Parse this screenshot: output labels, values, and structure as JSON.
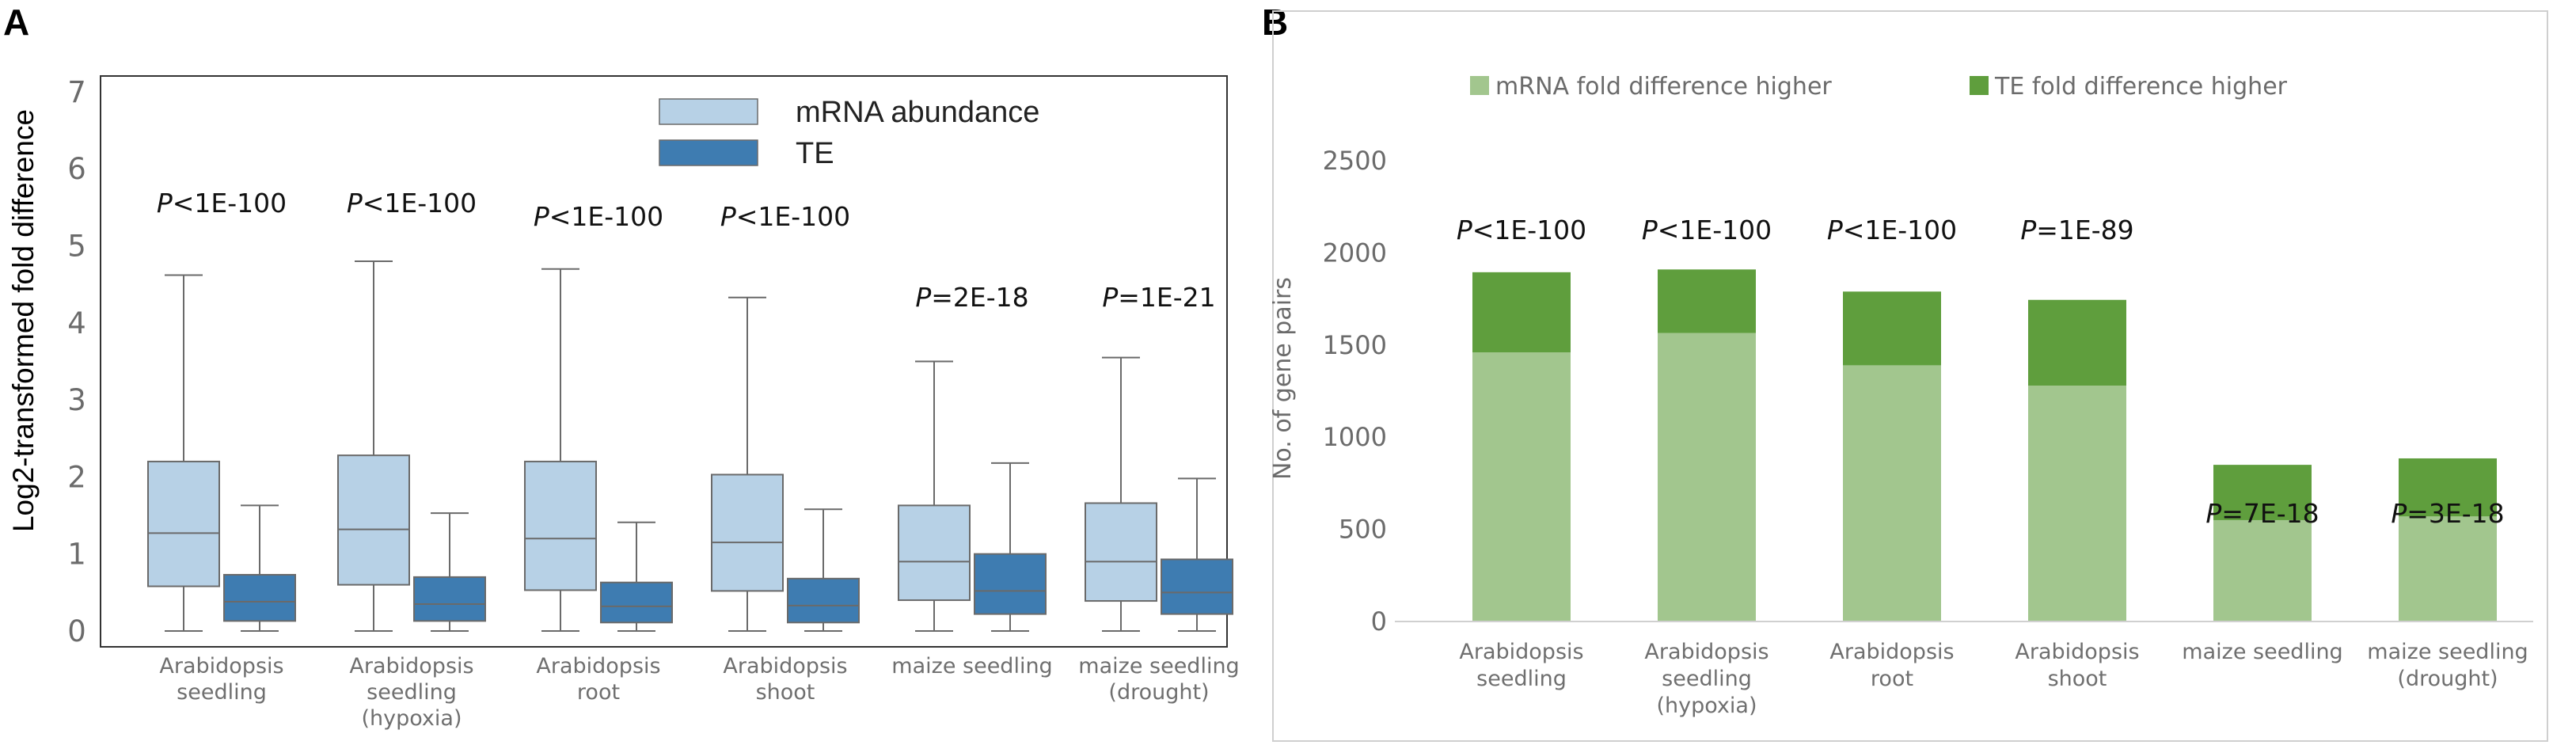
{
  "panels": {
    "a": {
      "letter": "A"
    },
    "b": {
      "letter": "B"
    }
  },
  "colors": {
    "mrna_box": "#b7d1e6",
    "te_box": "#3e7cb1",
    "box_edge": "#6a6a6a",
    "mrna_bar": "#a2c68e",
    "te_bar": "#5f9e3d"
  },
  "chart_data": [
    {
      "type": "box",
      "ylabel": "Log2-transformed fold difference",
      "xlabel": "",
      "ylim": [
        0,
        7
      ],
      "yticks": [
        "0",
        "1",
        "2",
        "3",
        "4",
        "5",
        "6",
        "7"
      ],
      "legend_position": "top-right",
      "legend": [
        "mRNA abundance",
        "TE"
      ],
      "categories": [
        [
          "Arabidopsis",
          "seedling"
        ],
        [
          "Arabidopsis",
          "seedling",
          "(hypoxia)"
        ],
        [
          "Arabidopsis",
          "root"
        ],
        [
          "Arabidopsis",
          "shoot"
        ],
        [
          "maize seedling"
        ],
        [
          "maize seedling",
          "(drought)"
        ]
      ],
      "p_values": [
        {
          "p": "P",
          "rest": "<1E-100"
        },
        {
          "p": "P",
          "rest": "<1E-100"
        },
        {
          "p": "P",
          "rest": "<1E-100"
        },
        {
          "p": "P",
          "rest": "<1E-100"
        },
        {
          "p": "P",
          "rest": "=2E-18"
        },
        {
          "p": "P",
          "rest": "=1E-21"
        }
      ],
      "series": [
        {
          "name": "mRNA abundance",
          "boxes": [
            {
              "whislo": 0.0,
              "q1": 0.58,
              "med": 1.27,
              "q3": 2.2,
              "whishi": 4.62
            },
            {
              "whislo": 0.0,
              "q1": 0.6,
              "med": 1.32,
              "q3": 2.28,
              "whishi": 4.8
            },
            {
              "whislo": 0.0,
              "q1": 0.53,
              "med": 1.2,
              "q3": 2.2,
              "whishi": 4.7
            },
            {
              "whislo": 0.0,
              "q1": 0.52,
              "med": 1.15,
              "q3": 2.03,
              "whishi": 4.33
            },
            {
              "whislo": 0.0,
              "q1": 0.4,
              "med": 0.9,
              "q3": 1.63,
              "whishi": 3.5
            },
            {
              "whislo": 0.0,
              "q1": 0.39,
              "med": 0.9,
              "q3": 1.66,
              "whishi": 3.55
            }
          ]
        },
        {
          "name": "TE",
          "boxes": [
            {
              "whislo": 0.0,
              "q1": 0.13,
              "med": 0.38,
              "q3": 0.73,
              "whishi": 1.63
            },
            {
              "whislo": 0.0,
              "q1": 0.13,
              "med": 0.35,
              "q3": 0.7,
              "whishi": 1.53
            },
            {
              "whislo": 0.0,
              "q1": 0.11,
              "med": 0.32,
              "q3": 0.63,
              "whishi": 1.41
            },
            {
              "whislo": 0.0,
              "q1": 0.11,
              "med": 0.33,
              "q3": 0.68,
              "whishi": 1.58
            },
            {
              "whislo": 0.0,
              "q1": 0.22,
              "med": 0.52,
              "q3": 1.0,
              "whishi": 2.18
            },
            {
              "whislo": 0.0,
              "q1": 0.22,
              "med": 0.5,
              "q3": 0.93,
              "whishi": 1.98
            }
          ]
        }
      ]
    },
    {
      "type": "bar",
      "stacked": true,
      "ylabel": "No. of gene pairs",
      "xlabel": "",
      "ylim": [
        0,
        2500
      ],
      "yticks": [
        "0",
        "500",
        "1000",
        "1500",
        "2000",
        "2500"
      ],
      "legend_position": "top",
      "legend": [
        "mRNA fold difference higher",
        "TE fold difference higher"
      ],
      "categories": [
        [
          "Arabidopsis",
          "seedling"
        ],
        [
          "Arabidopsis",
          "seedling",
          "(hypoxia)"
        ],
        [
          "Arabidopsis",
          "root"
        ],
        [
          "Arabidopsis",
          "shoot"
        ],
        [
          "maize seedling"
        ],
        [
          "maize seedling",
          "(drought)"
        ]
      ],
      "p_values": [
        {
          "p": "P",
          "rest": "<1E-100"
        },
        {
          "p": "P",
          "rest": "<1E-100"
        },
        {
          "p": "P",
          "rest": "<1E-100"
        },
        {
          "p": "P",
          "rest": "=1E-89"
        },
        {
          "p": "P",
          "rest": "=7E-18"
        },
        {
          "p": "P",
          "rest": "=3E-18"
        }
      ],
      "series": [
        {
          "name": "mRNA fold difference higher",
          "values": [
            1460,
            1565,
            1390,
            1280,
            550,
            570
          ]
        },
        {
          "name": "TE fold difference higher",
          "values": [
            435,
            345,
            400,
            465,
            300,
            315
          ]
        }
      ]
    }
  ]
}
